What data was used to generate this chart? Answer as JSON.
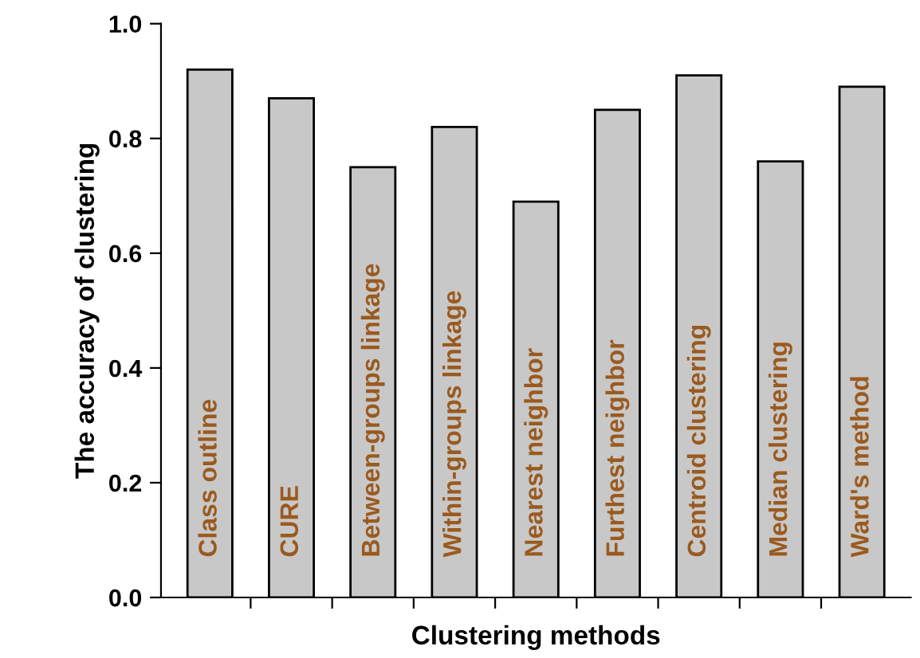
{
  "chart_data": {
    "type": "bar",
    "xlabel": "Clustering methods",
    "ylabel": "The accuracy of clustering",
    "categories": [
      "Class outline",
      "CURE",
      "Between-groups linkage",
      "Within-groups linkage",
      "Nearest neighbor",
      "Furthest neighbor",
      "Centroid clustering",
      "Median clustering",
      "Ward's method"
    ],
    "values": [
      0.92,
      0.87,
      0.75,
      0.82,
      0.69,
      0.85,
      0.91,
      0.76,
      0.89
    ],
    "color": "#c8c8c8",
    "ylim": [
      0,
      1.0
    ],
    "yticks": [
      {
        "value": 0,
        "label": "0.0"
      },
      {
        "value": 0.2,
        "label": "0.2"
      },
      {
        "value": 0.4,
        "label": "0.4"
      },
      {
        "value": 0.6,
        "label": "0.6"
      },
      {
        "value": 0.8,
        "label": "0.8"
      },
      {
        "value": 1.0,
        "label": "1.0"
      }
    ],
    "grid": false
  }
}
